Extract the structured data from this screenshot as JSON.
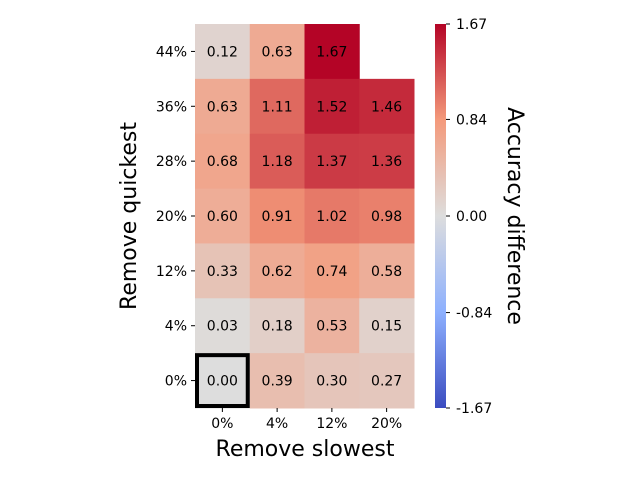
{
  "chart_data": {
    "type": "heatmap",
    "xlabel": "Remove slowest",
    "ylabel": "Remove quickest",
    "x_categories": [
      "0%",
      "4%",
      "12%",
      "20%"
    ],
    "y_categories": [
      "44%",
      "36%",
      "28%",
      "20%",
      "12%",
      "4%",
      "0%"
    ],
    "values": [
      [
        0.12,
        0.63,
        1.67,
        null
      ],
      [
        0.63,
        1.11,
        1.52,
        1.46
      ],
      [
        0.68,
        1.18,
        1.37,
        1.36
      ],
      [
        0.6,
        0.91,
        1.02,
        0.98
      ],
      [
        0.33,
        0.62,
        0.74,
        0.58
      ],
      [
        0.03,
        0.18,
        0.53,
        0.15
      ],
      [
        0.0,
        0.39,
        0.3,
        0.27
      ]
    ],
    "value_labels": [
      [
        "0.12",
        "0.63",
        "1.67",
        ""
      ],
      [
        "0.63",
        "1.11",
        "1.52",
        "1.46"
      ],
      [
        "0.68",
        "1.18",
        "1.37",
        "1.36"
      ],
      [
        "0.60",
        "0.91",
        "1.02",
        "0.98"
      ],
      [
        "0.33",
        "0.62",
        "0.74",
        "0.58"
      ],
      [
        "0.03",
        "0.18",
        "0.53",
        "0.15"
      ],
      [
        "0.00",
        "0.39",
        "0.30",
        "0.27"
      ]
    ],
    "highlighted_cell": {
      "row": "0%",
      "col": "0%"
    },
    "colormap": "coolwarm",
    "vmin": -1.67,
    "vmax": 1.67,
    "colorbar": {
      "label": "Accuracy difference",
      "ticks": [
        1.67,
        0.84,
        0.0,
        -0.84,
        -1.67
      ],
      "tick_labels": [
        "1.67",
        "0.84",
        "0.00",
        "-0.84",
        "-1.67"
      ]
    }
  }
}
